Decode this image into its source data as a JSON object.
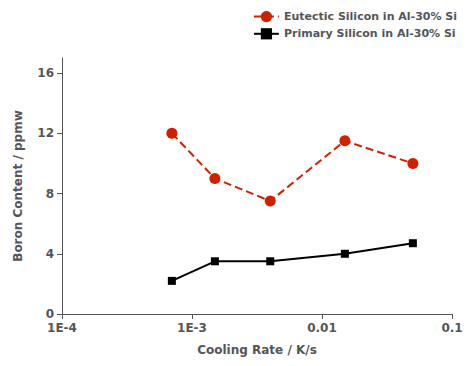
{
  "chart_data": {
    "type": "line",
    "xlabel": "Cooling Rate / K/s",
    "ylabel": "Boron Content / ppmw",
    "log": "x",
    "x": [
      0.0007,
      0.0015,
      0.004,
      0.015,
      0.05
    ],
    "xlim": [
      0.0001,
      0.1
    ],
    "xticks": [
      {
        "value": 0.0001,
        "label": "1E-4"
      },
      {
        "value": 0.001,
        "label": "1E-3"
      },
      0.01,
      0.1
    ],
    "ylim": [
      0,
      17
    ],
    "yticks": [
      0,
      4,
      8,
      12,
      16
    ],
    "grid": false,
    "legend": "upper right",
    "series": [
      {
        "name": "Eutectic Silicon in Al-30% Si",
        "color": "#cc2200",
        "values": [
          12.0,
          9.0,
          7.5,
          11.5,
          10.0
        ],
        "marker": "circle",
        "line_style": "dashed"
      },
      {
        "name": "Primary Silicon in Al-30% Si",
        "color": "#000000",
        "values": [
          2.2,
          3.5,
          3.5,
          4.0,
          4.7
        ],
        "marker": "square",
        "line_style": "solid"
      }
    ]
  }
}
